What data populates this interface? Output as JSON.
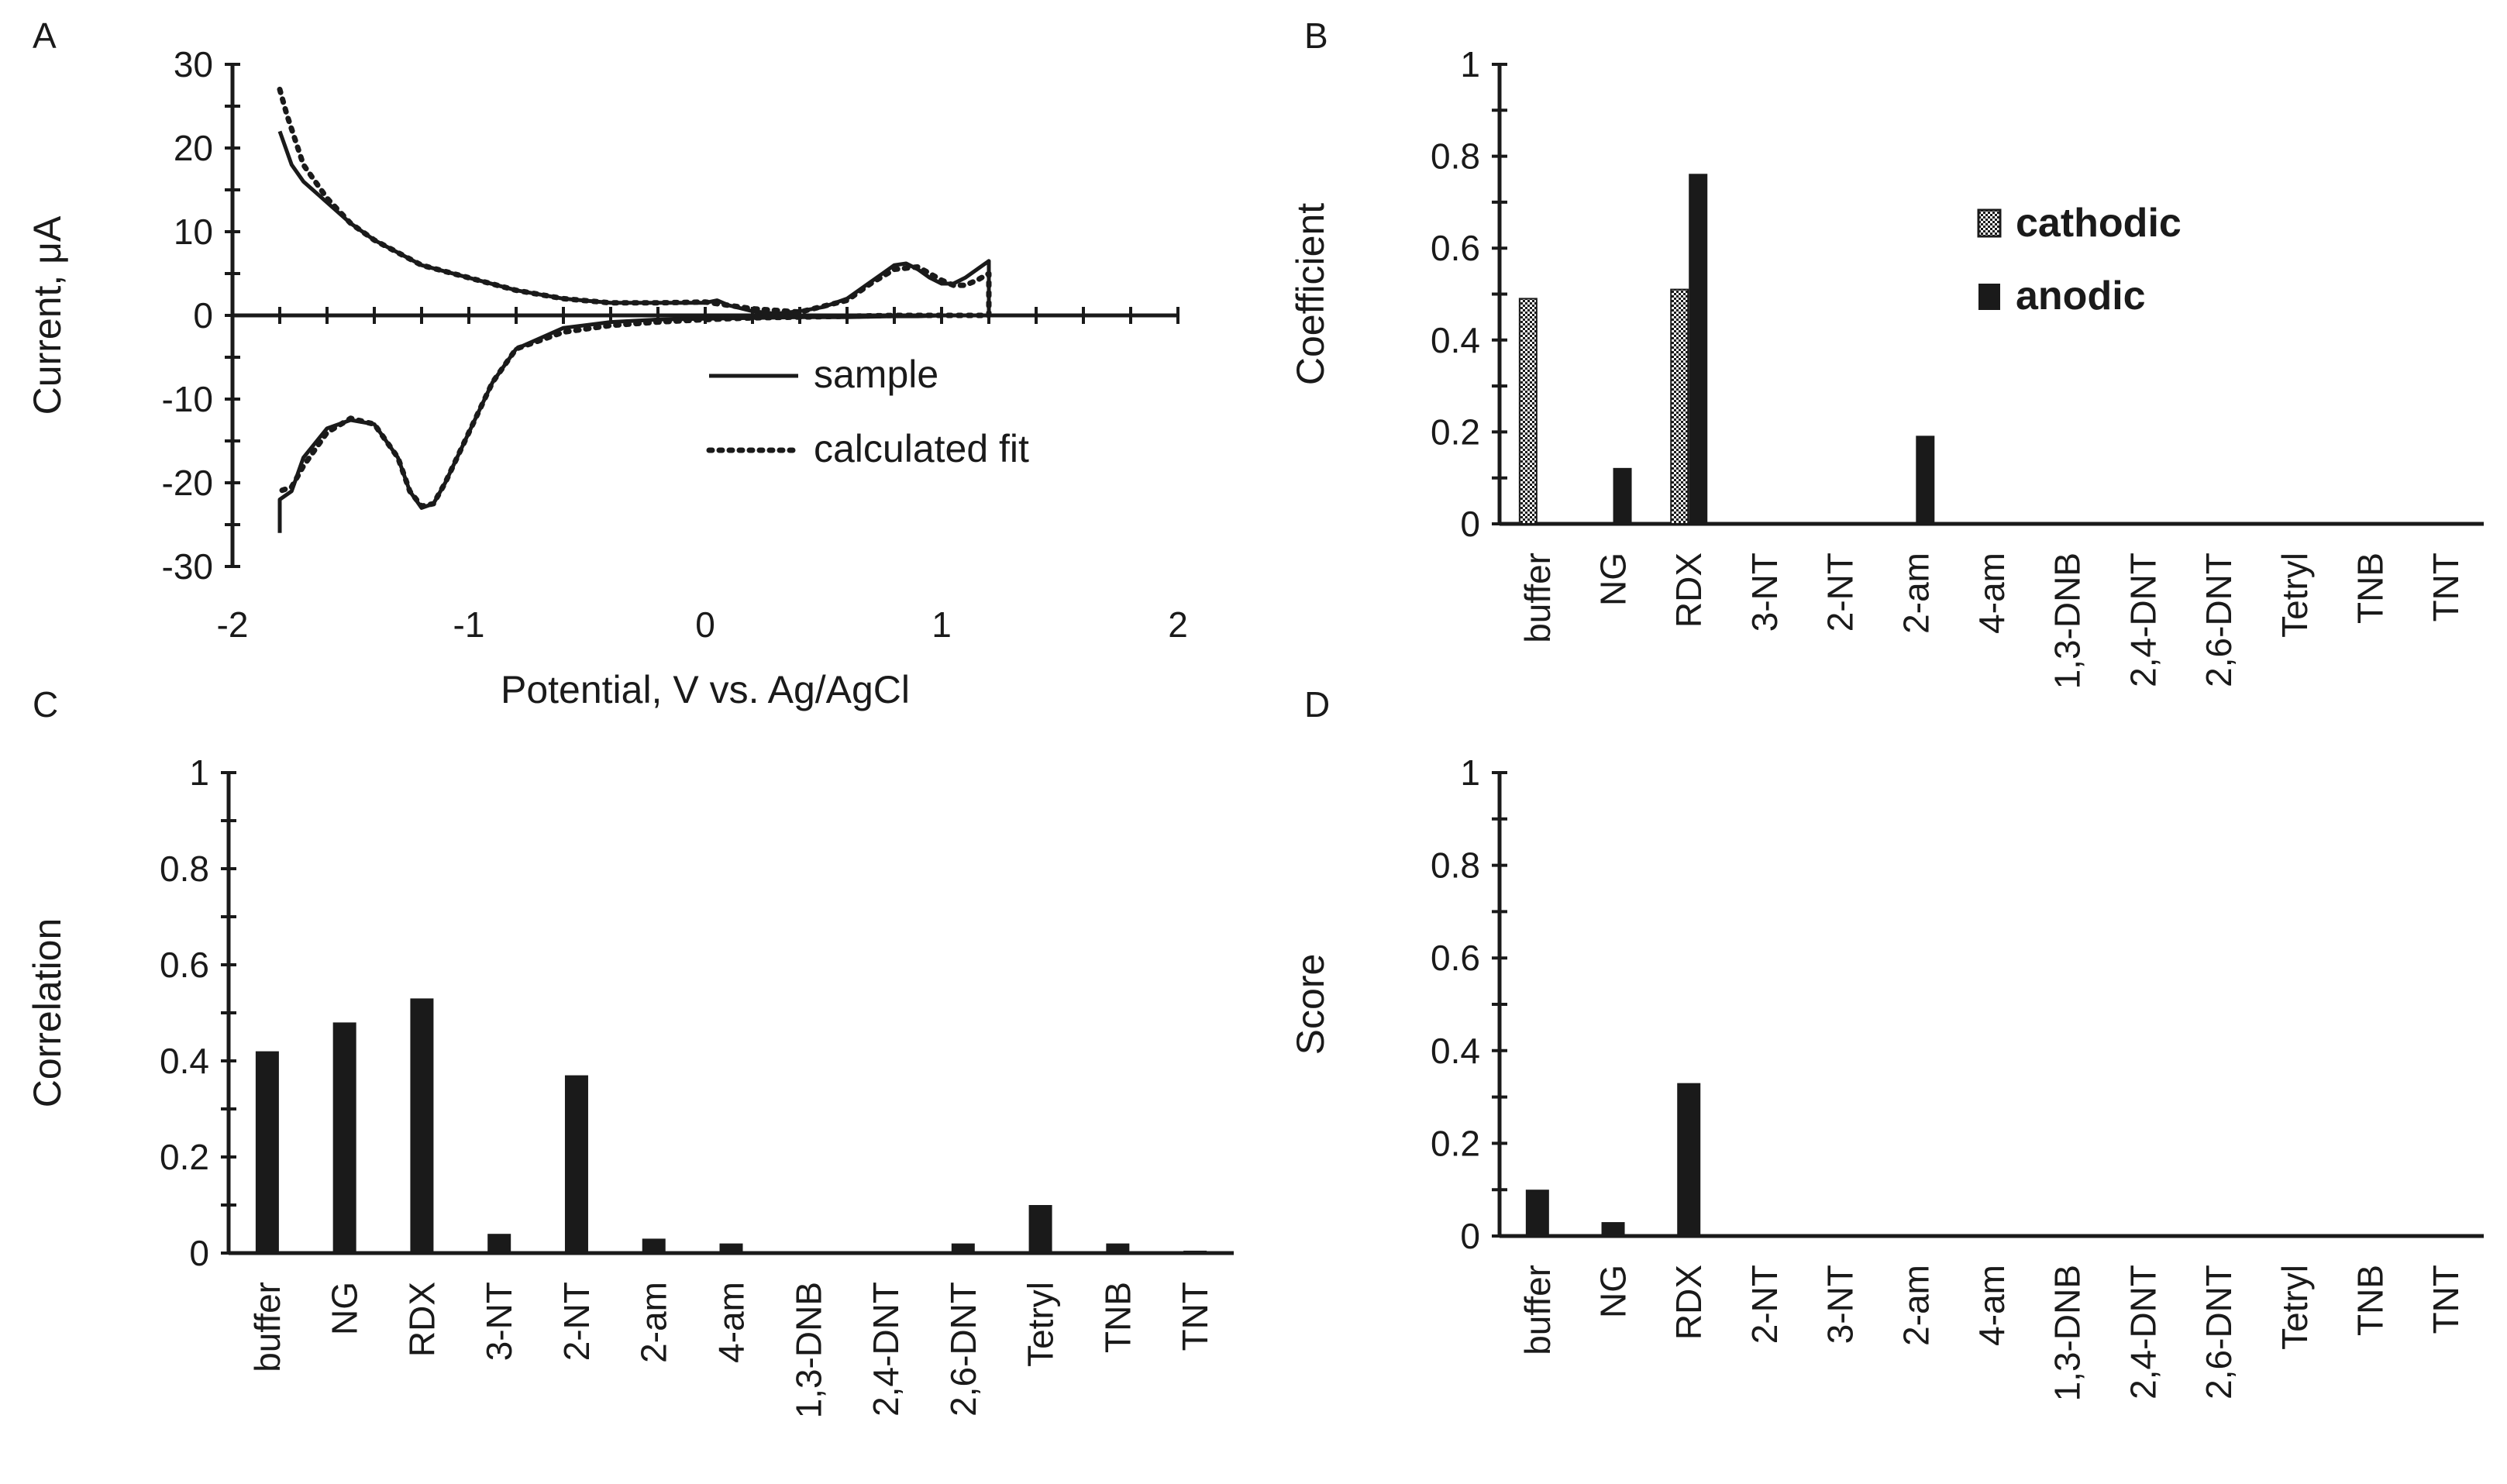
{
  "chart_data": [
    {
      "panel": "A",
      "type": "line",
      "xlabel": "Potential, V vs. Ag/AgCl",
      "ylabel": "Current, μA",
      "xlim": [
        -2,
        2
      ],
      "ylim": [
        -30,
        30
      ],
      "xticks": [
        -2,
        -1,
        0,
        1,
        2
      ],
      "yticks": [
        -30,
        -20,
        -10,
        0,
        10,
        20,
        30
      ],
      "xtick_labels": [
        "-2",
        "-1",
        "0",
        "1",
        "2"
      ],
      "ytick_labels": [
        "-30",
        "-20",
        "-10",
        "0",
        "10",
        "20",
        "30"
      ],
      "legend": [
        "sample",
        "calculated fit"
      ],
      "series": [
        {
          "name": "sample",
          "style": "solid",
          "x": [
            -1.8,
            -1.75,
            -1.7,
            -1.6,
            -1.5,
            -1.4,
            -1.3,
            -1.2,
            -1.0,
            -0.8,
            -0.6,
            -0.4,
            -0.2,
            0.0,
            0.05,
            0.1,
            0.2,
            0.3,
            0.4,
            0.5,
            0.6,
            0.7,
            0.75,
            0.8,
            0.85,
            0.9,
            0.95,
            1.0,
            1.05,
            1.1,
            1.15,
            1.2,
            1.2,
            1.1,
            1.0,
            0.9,
            0.8,
            0.6,
            0.4,
            0.2,
            0.0,
            -0.2,
            -0.4,
            -0.6,
            -0.8,
            -0.9,
            -1.0,
            -1.1,
            -1.15,
            -1.2,
            -1.25,
            -1.3,
            -1.4,
            -1.5,
            -1.6,
            -1.7,
            -1.75,
            -1.8,
            -1.8
          ],
          "y": [
            22,
            18,
            16,
            13.5,
            11,
            9,
            7.5,
            6,
            4.5,
            3,
            2,
            1.5,
            1.5,
            1.5,
            1.8,
            1.2,
            0.5,
            0.2,
            0.5,
            1,
            2,
            4,
            5,
            6,
            6.2,
            5.5,
            4.5,
            3.8,
            3.8,
            4.5,
            5.5,
            6.5,
            0,
            0,
            0,
            -0.1,
            -0.1,
            -0.2,
            -0.2,
            -0.3,
            -0.4,
            -0.5,
            -0.8,
            -1.5,
            -4,
            -8,
            -14,
            -20,
            -22.5,
            -23,
            -21,
            -17,
            -13,
            -12.5,
            -13.5,
            -17,
            -21,
            -22,
            -26
          ]
        },
        {
          "name": "calculated fit",
          "style": "dotted",
          "x": [
            -1.8,
            -1.77,
            -1.7,
            -1.6,
            -1.5,
            -1.4,
            -1.3,
            -1.2,
            -1.0,
            -0.8,
            -0.6,
            -0.4,
            -0.2,
            0.0,
            0.2,
            0.4,
            0.6,
            0.7,
            0.8,
            0.9,
            1.0,
            1.05,
            1.1,
            1.15,
            1.2,
            1.2,
            1.0,
            0.8,
            0.6,
            0.4,
            0.2,
            0.0,
            -0.2,
            -0.4,
            -0.6,
            -0.8,
            -0.9,
            -1.0,
            -1.1,
            -1.15,
            -1.2,
            -1.25,
            -1.3,
            -1.4,
            -1.5,
            -1.6,
            -1.7,
            -1.75,
            -1.8
          ],
          "y": [
            27,
            24,
            18,
            14,
            11,
            9,
            7.5,
            6,
            4.5,
            3,
            2,
            1.5,
            1.5,
            1.6,
            0.8,
            0.4,
            1.8,
            3.8,
            5.5,
            5.8,
            4.2,
            3.6,
            3.6,
            4.2,
            5,
            0,
            0,
            0,
            -0.1,
            -0.2,
            -0.3,
            -0.5,
            -0.8,
            -1.2,
            -2,
            -4,
            -8,
            -14,
            -20,
            -22.5,
            -22.8,
            -21,
            -17,
            -13,
            -12.3,
            -14,
            -18,
            -20.5,
            -21
          ]
        }
      ]
    },
    {
      "panel": "B",
      "type": "bar",
      "ylabel": "Coefficient",
      "ylim": [
        0,
        1
      ],
      "yticks": [
        0,
        0.2,
        0.4,
        0.6,
        0.8,
        1
      ],
      "ytick_labels": [
        "0",
        "0.2",
        "0.4",
        "0.6",
        "0.8",
        "1"
      ],
      "categories": [
        "buffer",
        "NG",
        "RDX",
        "3-NT",
        "2-NT",
        "2-am",
        "4-am",
        "1,3-DNB",
        "2,4-DNT",
        "2,6-DNT",
        "Tetryl",
        "TNB",
        "TNT"
      ],
      "legend": [
        "cathodic",
        "anodic"
      ],
      "series": [
        {
          "name": "cathodic",
          "values": [
            0.49,
            0,
            0.51,
            0,
            0,
            0,
            0,
            0,
            0,
            0,
            0,
            0,
            0
          ]
        },
        {
          "name": "anodic",
          "values": [
            0,
            0.12,
            0.76,
            0,
            0,
            0.19,
            0,
            0,
            0,
            0,
            0,
            0,
            0
          ]
        }
      ]
    },
    {
      "panel": "C",
      "type": "bar",
      "ylabel": "Correlation",
      "ylim": [
        0,
        1
      ],
      "yticks": [
        0,
        0.2,
        0.4,
        0.6,
        0.8,
        1
      ],
      "ytick_labels": [
        "0",
        "0.2",
        "0.4",
        "0.6",
        "0.8",
        "1"
      ],
      "categories": [
        "buffer",
        "NG",
        "RDX",
        "3-NT",
        "2-NT",
        "2-am",
        "4-am",
        "1,3-DNB",
        "2,4-DNT",
        "2,6-DNT",
        "Tetryl",
        "TNB",
        "TNT"
      ],
      "values": [
        0.42,
        0.48,
        0.53,
        0.04,
        0.37,
        0.03,
        0.02,
        0,
        0,
        0.02,
        0.1,
        0.02,
        0.005
      ]
    },
    {
      "panel": "D",
      "type": "bar",
      "ylabel": "Score",
      "ylim": [
        0,
        1
      ],
      "yticks": [
        0,
        0.2,
        0.4,
        0.6,
        0.8,
        1
      ],
      "ytick_labels": [
        "0",
        "0.2",
        "0.4",
        "0.6",
        "0.8",
        "1"
      ],
      "categories": [
        "buffer",
        "NG",
        "RDX",
        "2-NT",
        "3-NT",
        "2-am",
        "4-am",
        "1,3-DNB",
        "2,4-DNT",
        "2,6-DNT",
        "Tetryl",
        "TNB",
        "TNT"
      ],
      "values": [
        0.1,
        0.03,
        0.33,
        0,
        0,
        0,
        0,
        0,
        0,
        0,
        0,
        0,
        0
      ]
    }
  ]
}
